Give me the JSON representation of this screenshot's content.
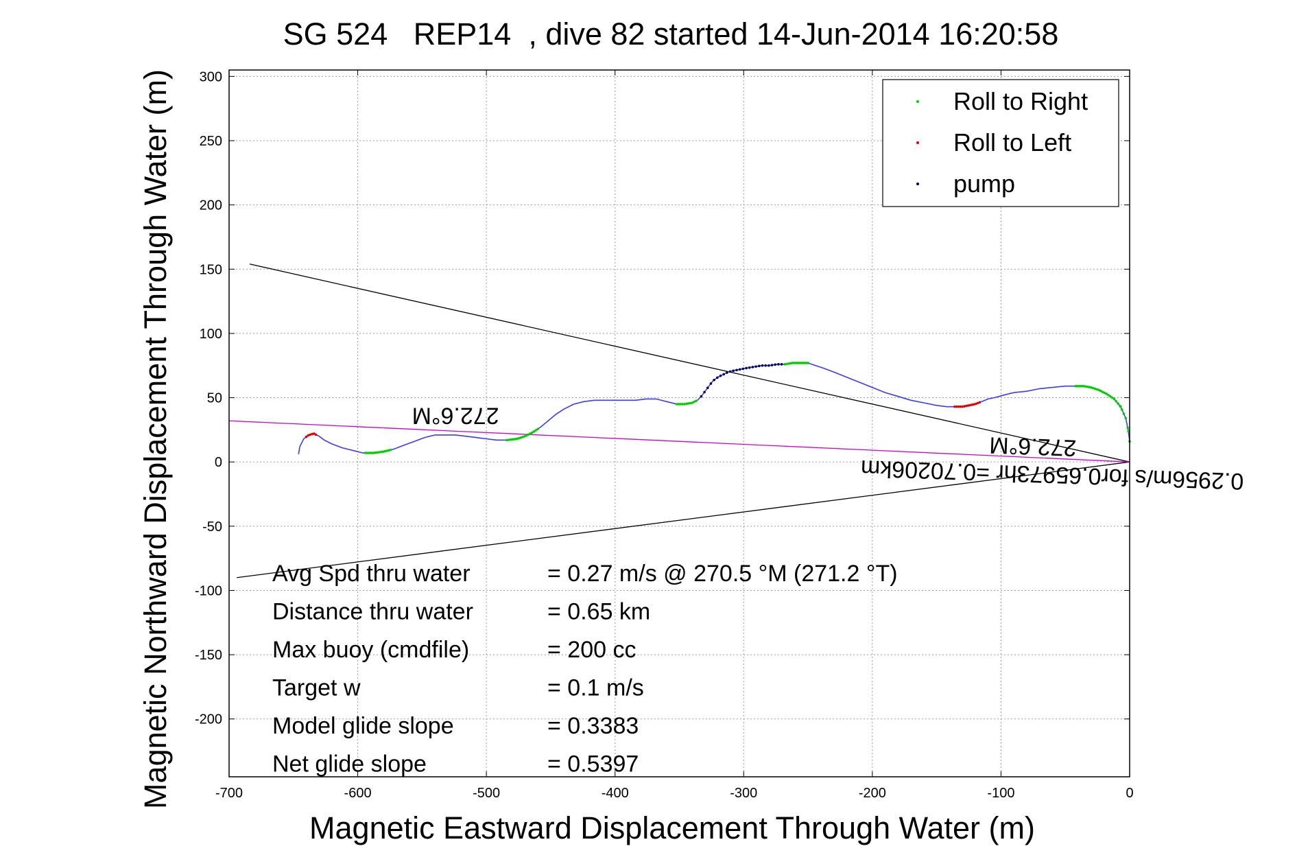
{
  "chart_data": {
    "type": "line",
    "title": "SG 524   REP14  , dive 82 started 14-Jun-2014 16:20:58",
    "xlabel": "Magnetic Eastward Displacement Through Water (m)",
    "ylabel": "Magnetic Northward Displacement Through Water (m)",
    "xlim": [
      -700,
      0
    ],
    "ylim": [
      -245,
      305
    ],
    "xticks": [
      "-700",
      "-600",
      "-500",
      "-400",
      "-300",
      "-200",
      "-100",
      "0"
    ],
    "yticks": [
      "-200",
      "-150",
      "-100",
      "-50",
      "0",
      "50",
      "100",
      "150",
      "200",
      "250",
      "300"
    ],
    "grid": true,
    "legend_position": "top-right",
    "legend": [
      {
        "name": "Roll to Right",
        "color": "#00cc00"
      },
      {
        "name": "Roll to Left",
        "color": "#dd0000"
      },
      {
        "name": "pump",
        "color": "#000055"
      }
    ],
    "series": [
      {
        "name": "track",
        "color": "#3a3aff",
        "x": [
          -646,
          -645,
          -642,
          -638,
          -634,
          -630,
          -626,
          -620,
          -612,
          -604,
          -596,
          -588,
          -580,
          -572,
          -564,
          -556,
          -548,
          -540,
          -532,
          -524,
          -516,
          -508,
          -500,
          -492,
          -484,
          -476,
          -470,
          -464,
          -458,
          -452,
          -446,
          -440,
          -432,
          -424,
          -416,
          -408,
          -400,
          -392,
          -384,
          -376,
          -368,
          -360,
          -352,
          -346,
          -340,
          -336,
          -333,
          -330,
          -327,
          -324,
          -320,
          -316,
          -312,
          -308,
          -303,
          -298,
          -292,
          -286,
          -280,
          -274,
          -268,
          -262,
          -256,
          -250,
          -244,
          -238,
          -230,
          -220,
          -210,
          -200,
          -190,
          -180,
          -170,
          -160,
          -150,
          -142,
          -136,
          -130,
          -125,
          -120,
          -115,
          -110,
          -105,
          -98,
          -90,
          -80,
          -70,
          -60,
          -50,
          -42,
          -36,
          -30,
          -24,
          -18,
          -12,
          -7,
          -3,
          -1,
          0
        ],
        "y": [
          6,
          12,
          18,
          21,
          22,
          20,
          17,
          14,
          11,
          9,
          7,
          7,
          8,
          10,
          13,
          16,
          19,
          21,
          21,
          21,
          20,
          19,
          18,
          17,
          17,
          18,
          20,
          23,
          27,
          32,
          37,
          41,
          45,
          47,
          48,
          48,
          48,
          48,
          48,
          49,
          49,
          47,
          45,
          45,
          46,
          48,
          51,
          55,
          59,
          63,
          66,
          68,
          70,
          71,
          72,
          73,
          74,
          75,
          75,
          76,
          76,
          77,
          77,
          77,
          75,
          73,
          70,
          66,
          62,
          58,
          54,
          51,
          48,
          46,
          44,
          43,
          43,
          43,
          44,
          45,
          47,
          49,
          50,
          52,
          54,
          55,
          57,
          58,
          59,
          59,
          59,
          58,
          56,
          53,
          49,
          43,
          34,
          24,
          16
        ]
      }
    ],
    "roll_right_ranges": [
      [
        -594,
        -574
      ],
      [
        -484,
        -460
      ],
      [
        -352,
        -336
      ],
      [
        -268,
        -250
      ],
      [
        -42,
        0
      ]
    ],
    "roll_left_ranges": [
      [
        -640,
        -632
      ],
      [
        -136,
        -116
      ]
    ],
    "pump_ranges": [
      [
        -333,
        -270
      ]
    ],
    "reference_lines": [
      {
        "name": "heading-line-upper",
        "color": "#000000",
        "x": [
          -684,
          0
        ],
        "y": [
          154,
          0
        ]
      },
      {
        "name": "heading-line-lower",
        "color": "#000000",
        "x": [
          -694,
          0
        ],
        "y": [
          -90,
          0
        ]
      },
      {
        "name": "heading-line-magenta",
        "color": "#cc00cc",
        "x": [
          -700,
          0
        ],
        "y": [
          32,
          0
        ]
      }
    ],
    "rotated_labels": [
      {
        "text": "272.6°M",
        "x": -524,
        "y": 42,
        "angle": 180
      },
      {
        "text": "272.6°M",
        "x": -75,
        "y": 18,
        "angle": 182
      },
      {
        "text": "0.2956m/s for0.65973hr =0.70206km",
        "x": -60,
        "y": -4,
        "angle": 182
      }
    ],
    "annotations": [
      {
        "label": "Avg Spd thru water",
        "value": "=  0.27 m/s @ 270.5 °M (271.2 °T)"
      },
      {
        "label": "Distance thru water",
        "value": "=  0.65 km"
      },
      {
        "label": "Max buoy (cmdfile)",
        "value": "= 200 cc"
      },
      {
        "label": "Target w",
        "value": "= 0.1 m/s"
      },
      {
        "label": "Model glide slope",
        "value": "= 0.3383"
      },
      {
        "label": "Net glide slope",
        "value": "= 0.5397"
      }
    ]
  }
}
